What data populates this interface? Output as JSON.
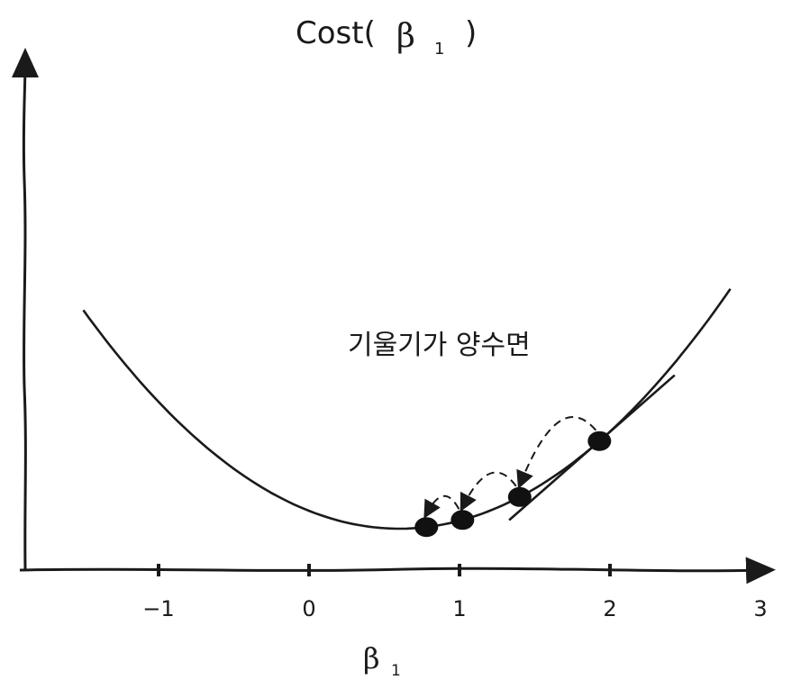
{
  "title": {
    "prefix": "Cost(",
    "symbol": "β",
    "subscript": "1",
    "suffix": ")"
  },
  "x_axis": {
    "symbol": "β",
    "subscript": "1",
    "ticks": [
      {
        "value": -1,
        "label": "−1"
      },
      {
        "value": 0,
        "label": "0"
      },
      {
        "value": 1,
        "label": "1"
      },
      {
        "value": 2,
        "label": "2"
      },
      {
        "value": 3,
        "label": "3"
      }
    ]
  },
  "annotation": "기울기가 양수면",
  "curve": {
    "vertex_x": 0.6,
    "vertex_y": 0.45,
    "a": 0.55,
    "x_from": -1.5,
    "x_to": 2.8
  },
  "steps_x": [
    1.93,
    1.4,
    1.02,
    0.78
  ],
  "tangent_at_x": 1.93,
  "colors": {
    "ink": "#1a1a1a",
    "background": "#ffffff"
  }
}
